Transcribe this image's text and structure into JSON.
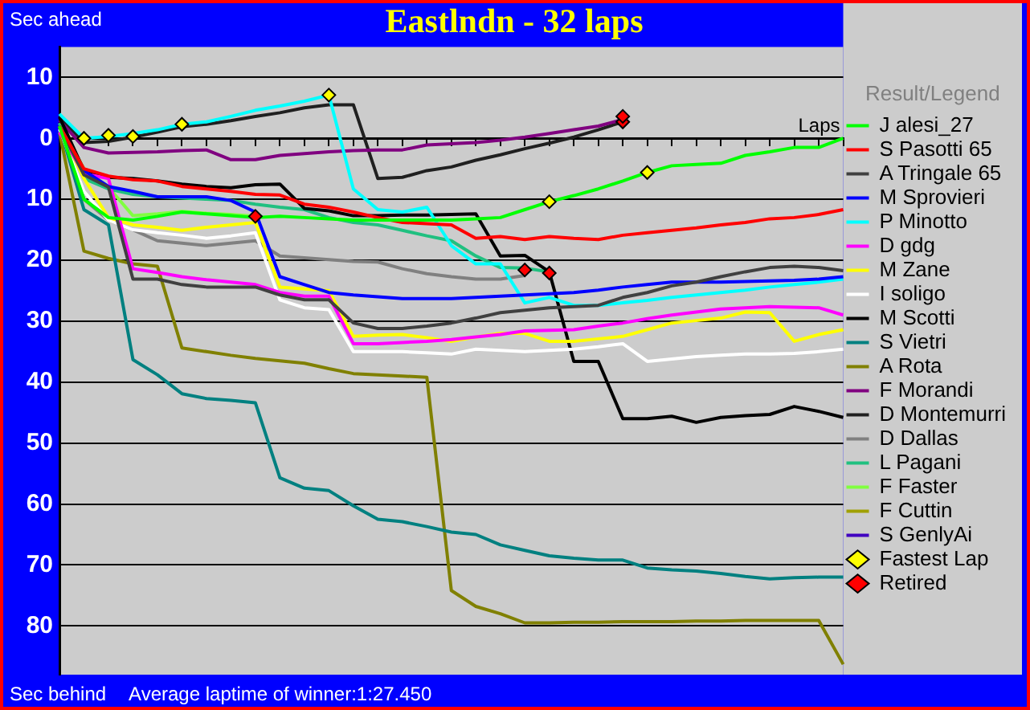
{
  "chart_data": {
    "type": "line",
    "title": "Eastlndn - 32 laps",
    "ylabel": "Sec ahead",
    "xlabel": "Laps",
    "legend_title": "Result/Legend",
    "legend": "right",
    "grid": "y",
    "tick_labels": "y",
    "annotations": [
      "Sec behind",
      "Average laptime of winner:1:27.450"
    ],
    "categories": [
      null,
      null,
      null,
      null,
      null,
      null,
      null,
      null,
      null,
      null,
      null,
      null,
      null,
      null,
      null,
      null,
      null,
      null,
      null,
      null,
      null,
      null,
      null,
      null,
      null,
      null,
      null,
      null,
      null,
      null,
      null,
      null,
      null
    ],
    "ylim": [
      -88,
      15
    ],
    "yticks": [
      {
        "value": -80,
        "label": "80"
      },
      {
        "value": -70,
        "label": "70"
      },
      {
        "value": -60,
        "label": "60"
      },
      {
        "value": -50,
        "label": "50"
      },
      {
        "value": -40,
        "label": "40"
      },
      {
        "value": -30,
        "label": "30"
      },
      {
        "value": -20,
        "label": "20"
      },
      {
        "value": -10,
        "label": "10"
      },
      {
        "value": 0,
        "label": "0"
      },
      {
        "value": 10,
        "label": "10"
      }
    ],
    "series": [
      {
        "name": "J alesi_27",
        "color": "#00ff00",
        "values": [
          2,
          -10,
          -13,
          -13.4,
          -12.8,
          -12.1,
          -12.4,
          -12.7,
          -13,
          -12.8,
          -13,
          -13.2,
          -13.4,
          -13.4,
          -13.4,
          -13.4,
          -13.4,
          -13.2,
          -13,
          -11.7,
          -10.4,
          -9.4,
          -8.3,
          -7,
          -5.6,
          -4.5,
          -4.3,
          -4.1,
          -2.8,
          -2.2,
          -1.5,
          -1.5,
          0
        ]
      },
      {
        "name": "S Pasotti 65",
        "color": "#ff0000",
        "values": [
          2,
          -5,
          -6.2,
          -6.8,
          -7,
          -7.9,
          -8.3,
          -8.7,
          -9.2,
          -9.3,
          -10.8,
          -11.3,
          -12.1,
          -13,
          -13.8,
          -14,
          -14.2,
          -16.4,
          -16.1,
          -16.6,
          -16.1,
          -16.4,
          -16.6,
          -15.9,
          -15.5,
          -15.1,
          -14.7,
          -14.2,
          -13.8,
          -13.2,
          -13,
          -12.5,
          -11.7
        ]
      },
      {
        "name": "A Tringale 65",
        "color": "#404040",
        "values": [
          2,
          -6,
          -8,
          -23.1,
          -23.1,
          -24,
          -24.4,
          -24.4,
          -24.4,
          -25.7,
          -26.5,
          -26.5,
          -30.3,
          -31.2,
          -31.2,
          -30.8,
          -30.3,
          -29.5,
          -28.6,
          -28.2,
          -27.8,
          -27.6,
          -27.4,
          -26.1,
          -25.3,
          -24.2,
          -23.6,
          -22.7,
          -21.9,
          -21.2,
          -21,
          -21.2,
          -21.7
        ]
      },
      {
        "name": "M Sprovieri",
        "color": "#0000ff",
        "values": [
          2,
          -5.3,
          -7.9,
          -8.7,
          -9.6,
          -9.6,
          -9.6,
          -10.2,
          -12.1,
          -22.7,
          -24,
          -25.3,
          -25.7,
          -26,
          -26.3,
          -26.3,
          -26.3,
          -26.1,
          -25.9,
          -25.7,
          -25.5,
          -25.3,
          -24.9,
          -24.4,
          -24,
          -23.6,
          -23.6,
          -23.6,
          -23.5,
          -23.4,
          -23.3,
          -23.1,
          -22.7
        ]
      },
      {
        "name": "P Minotto",
        "color": "#00ffff",
        "values": [
          4,
          0,
          0.3,
          0.8,
          1.4,
          2.3,
          2.7,
          3.6,
          4.6,
          5.3,
          6.1,
          7.1,
          -8.3,
          -11.7,
          -12.1,
          -11.3,
          -17.6,
          -20.6,
          -20.6,
          -27,
          -26.1,
          -27.4,
          -27.4,
          -27,
          -26.6,
          -26.1,
          -25.7,
          -25.3,
          -24.9,
          -24.4,
          -24,
          -23.6,
          -23.1
        ]
      },
      {
        "name": "D gdg",
        "color": "#ff00ff",
        "values": [
          1,
          -5.8,
          -6.6,
          -21.4,
          -22,
          -22.7,
          -23.2,
          -23.6,
          -24,
          -25.3,
          -25.9,
          -25.9,
          -33.7,
          -33.7,
          -33.5,
          -33.3,
          -33,
          -32.6,
          -32.2,
          -31.6,
          -31.5,
          -31.4,
          -30.8,
          -30.3,
          -29.6,
          -29,
          -28.5,
          -28,
          -27.8,
          -27.6,
          -27.7,
          -27.8,
          -29
        ]
      },
      {
        "name": "M Zane",
        "color": "#ffff00",
        "values": [
          2,
          -6.6,
          -13,
          -14.2,
          -14.6,
          -15.1,
          -14.6,
          -14.2,
          -13.8,
          -24.4,
          -24.7,
          -25,
          -32.5,
          -32.3,
          -32.2,
          -32.7,
          -33.3,
          -32.6,
          -32,
          -32,
          -33.3,
          -33.3,
          -32.9,
          -32.5,
          -31.4,
          -30.3,
          -29.9,
          -29.5,
          -28.5,
          -28.6,
          -33.3,
          -32.2,
          -31.4
        ]
      },
      {
        "name": "I soligo",
        "color": "#ffffff",
        "values": [
          1.5,
          -8.7,
          -13.4,
          -15,
          -15.5,
          -15.9,
          -16.4,
          -16,
          -15.5,
          -26.5,
          -27.8,
          -28.1,
          -35,
          -35,
          -35,
          -35.2,
          -35.4,
          -34.6,
          -34.8,
          -35,
          -34.8,
          -34.6,
          -34.2,
          -33.7,
          -36.6,
          -36.2,
          -35.8,
          -35.6,
          -35.4,
          -35.4,
          -35.3,
          -35,
          -34.6
        ]
      },
      {
        "name": "M Scotti",
        "color": "#000000",
        "values": [
          3.5,
          -5.3,
          -6.4,
          -6.6,
          -7,
          -7.5,
          -7.9,
          -8.1,
          -7.6,
          -7.5,
          -11.5,
          -11.9,
          -12.7,
          -12.7,
          -12.6,
          -12.6,
          -12.5,
          -12.4,
          -19.3,
          -19.2,
          -21.9,
          -36.6,
          -36.6,
          -46,
          -46,
          -45.6,
          -46.6,
          -45.8,
          -45.5,
          -45.3,
          -44,
          -44.8,
          -45.8
        ]
      },
      {
        "name": "S Vietri",
        "color": "#008080",
        "values": [
          2,
          -11.7,
          -14.2,
          -36.3,
          -38.8,
          -41.9,
          -42.7,
          -43,
          -43.4,
          -55.7,
          -57.4,
          -57.8,
          -60.3,
          -62.5,
          -62.9,
          -63.7,
          -64.6,
          -65,
          -66.7,
          -67.6,
          -68.5,
          -68.9,
          -69.2,
          -69.2,
          -70.5,
          -70.8,
          -71,
          -71.4,
          -71.9,
          -72.3,
          -72.1,
          -72,
          -72
        ]
      },
      {
        "name": "A Rota",
        "color": "#808000",
        "values": [
          1,
          -18.5,
          -19.7,
          -20.6,
          -21,
          -34.4,
          -35,
          -35.6,
          -36.1,
          -36.5,
          -36.9,
          -37.8,
          -38.6,
          -38.8,
          -39,
          -39.2,
          -74.2,
          -76.8,
          -78,
          -79.5,
          -79.5,
          -79.4,
          -79.4,
          -79.3,
          -79.3,
          -79.3,
          -79.2,
          -79.2,
          -79.1,
          -79.1,
          -79.1,
          -79.1,
          -86.3
        ]
      },
      {
        "name": "F Morandi",
        "color": "#800080",
        "values": [
          3,
          -1.5,
          -2.4,
          -2.3,
          -2.2,
          -2,
          -1.9,
          -3.5,
          -3.5,
          -2.8,
          -2.5,
          -2.2,
          -2,
          -1.9,
          -1.9,
          -1.1,
          -0.9,
          -0.7,
          -0.3,
          0.2,
          0.8,
          1.4,
          2,
          3.1,
          null,
          null,
          null,
          null,
          null,
          null,
          null,
          null,
          null
        ]
      },
      {
        "name": "D Montemurri",
        "color": "#202020",
        "values": [
          3.6,
          -0.7,
          -0.5,
          0.2,
          1,
          1.9,
          2.3,
          2.9,
          3.6,
          4.2,
          5,
          5.5,
          5.5,
          -6.6,
          -6.4,
          -5.3,
          -4.7,
          -3.6,
          -2.7,
          -1.7,
          -0.8,
          0.2,
          1.4,
          2.7,
          null,
          null,
          null,
          null,
          null,
          null,
          null,
          null,
          null
        ]
      },
      {
        "name": "D Dallas",
        "color": "#808080",
        "values": [
          2,
          -10,
          -13.4,
          -15,
          -16.8,
          -17.2,
          -17.6,
          -17.2,
          -16.8,
          -19.3,
          -19.6,
          -19.9,
          -20.2,
          -20.3,
          -21.4,
          -22.2,
          -22.7,
          -23.1,
          -23.1,
          -22.5,
          null,
          null,
          null,
          null,
          null,
          null,
          null,
          null,
          null,
          null,
          null,
          null,
          null
        ]
      },
      {
        "name": "L Pagani",
        "color": "#20c080",
        "values": [
          2.5,
          -6.6,
          -8.3,
          -9.2,
          -9.6,
          -9.8,
          -10,
          -10.2,
          -10.8,
          -11.3,
          -11.7,
          -13,
          -13.8,
          -14.2,
          -15.1,
          -16,
          -16.8,
          -19.3,
          -21.2,
          -21.3,
          -21.9,
          null,
          null,
          null,
          null,
          null,
          null,
          null,
          null,
          null,
          null,
          null,
          null
        ]
      },
      {
        "name": "F Faster",
        "color": "#80ff40",
        "values": [
          2.5,
          -5,
          -8,
          -12.7,
          -12.4,
          -12,
          -12.3,
          -12.5,
          -12.8,
          null,
          null,
          null,
          null,
          null,
          null,
          null,
          null,
          null,
          null,
          null,
          null,
          null,
          null,
          null,
          null,
          null,
          null,
          null,
          null,
          null,
          null,
          null,
          null
        ]
      },
      {
        "name": "F Cuttin",
        "color": "#a0a000",
        "values": [
          null,
          null,
          null,
          null,
          null,
          null,
          null,
          null,
          null,
          null,
          null,
          null,
          null,
          null,
          null,
          null,
          null,
          null,
          null,
          null,
          null,
          null,
          null,
          null,
          null,
          null,
          null,
          null,
          null,
          null,
          null,
          null,
          null
        ]
      },
      {
        "name": "S GenlyAi",
        "color": "#4000c0",
        "values": [
          null,
          null,
          null,
          null,
          null,
          null,
          null,
          null,
          null,
          null,
          null,
          null,
          null,
          null,
          null,
          null,
          null,
          null,
          null,
          null,
          null,
          null,
          null,
          null,
          null,
          null,
          null,
          null,
          null,
          null,
          null,
          null,
          null
        ]
      },
      {
        "name": "Fastest Lap",
        "color": "#ffff00",
        "type": "scatter",
        "marker": "diamond",
        "values": [
          null,
          0,
          0.5,
          0.3,
          null,
          2.3,
          null,
          null,
          null,
          null,
          null,
          7.1,
          null,
          null,
          null,
          null,
          null,
          null,
          null,
          null,
          -10.4,
          null,
          null,
          null,
          -5.6,
          null,
          null,
          null,
          null,
          null,
          null,
          null,
          null
        ]
      },
      {
        "name": "Retired",
        "color": "#ff0000",
        "type": "scatter",
        "marker": "diamond",
        "values": [
          null,
          null,
          null,
          null,
          null,
          null,
          null,
          null,
          -12.8,
          null,
          null,
          null,
          null,
          null,
          null,
          null,
          null,
          null,
          null,
          -21.6,
          -22.1,
          null,
          null,
          3.6,
          null,
          null,
          null,
          null,
          null,
          null,
          null,
          null,
          null
        ]
      },
      {
        "color": "#ff0000",
        "type": "scatter",
        "marker": "diamond",
        "values": [
          null,
          null,
          null,
          null,
          null,
          null,
          null,
          null,
          null,
          null,
          null,
          null,
          null,
          null,
          null,
          null,
          null,
          null,
          null,
          null,
          null,
          null,
          null,
          2.7,
          null,
          null,
          null,
          null,
          null,
          null,
          null,
          null,
          null
        ]
      }
    ]
  }
}
